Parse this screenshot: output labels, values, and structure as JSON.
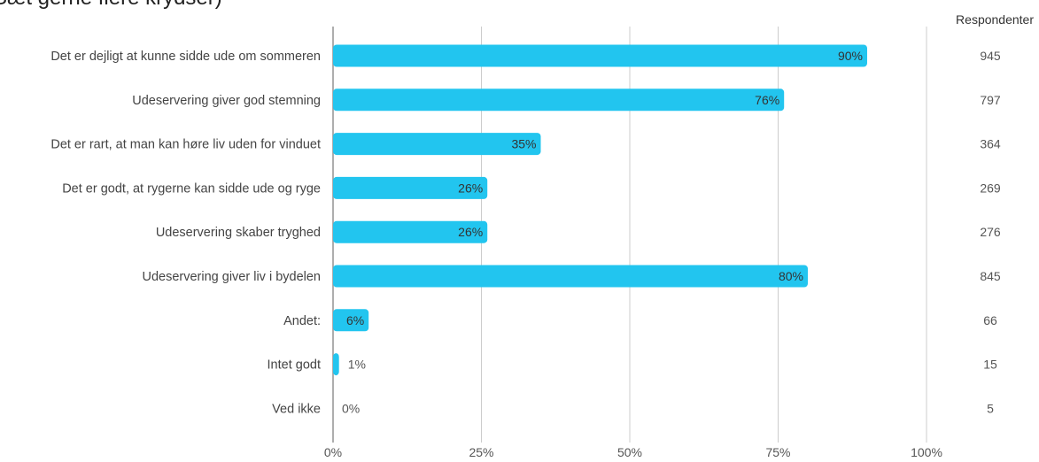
{
  "title": "Sæt gerne flere krydser)",
  "respondents_header": "Respondenter",
  "colors": {
    "bar": "#22c5ef",
    "grid": "#cccccc",
    "axis": "#999999"
  },
  "chart_data": {
    "type": "bar",
    "orientation": "horizontal",
    "categories": [
      "Det er dejligt at kunne sidde ude om sommeren",
      "Udeservering giver god stemning",
      "Det er rart, at man kan høre liv uden for vinduet",
      "Det er godt, at rygerne kan sidde ude og ryge",
      "Udeservering skaber tryghed",
      "Udeservering giver liv i bydelen",
      "Andet:",
      "Intet godt",
      "Ved ikke"
    ],
    "values": [
      90,
      76,
      35,
      26,
      26,
      80,
      6,
      1,
      0
    ],
    "value_labels": [
      "90%",
      "76%",
      "35%",
      "26%",
      "26%",
      "80%",
      "6%",
      "1%",
      "0%"
    ],
    "respondents": [
      "945",
      "797",
      "364",
      "269",
      "276",
      "845",
      "66",
      "15",
      "5"
    ],
    "xlim": [
      0,
      100
    ],
    "xticks": [
      0,
      25,
      50,
      75,
      100
    ],
    "xtick_labels": [
      "0%",
      "25%",
      "50%",
      "75%",
      "100%"
    ],
    "grid": true
  }
}
